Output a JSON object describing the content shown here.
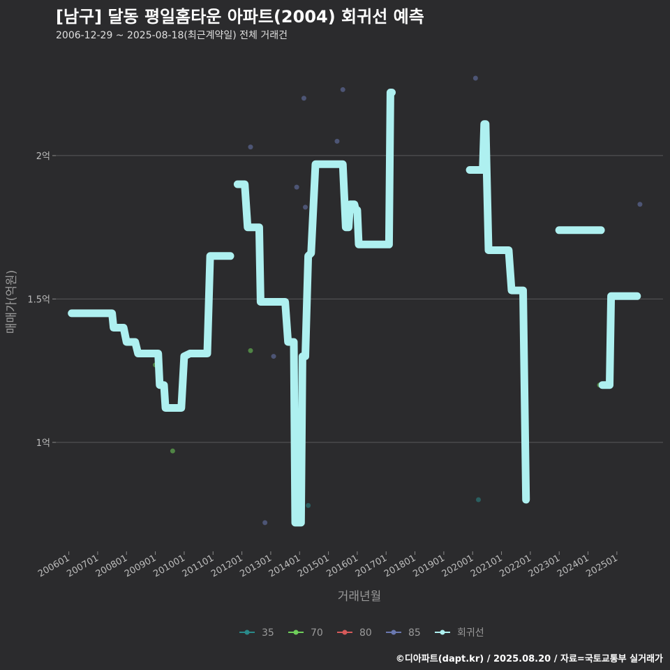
{
  "header": {
    "title": "[남구] 달동 평일홈타운 아파트(2004) 회귀선 예측",
    "subtitle": "2006-12-29 ~ 2025-08-18(최근계약일) 전체 거래건"
  },
  "caption": "©디아파트(dapt.kr) / 2025.08.20 / 자료=국토교통부 실거래가",
  "colors": {
    "background": "#2b2b2d",
    "grid": "#5a5a5c",
    "regression": "#aef0f0",
    "s35": "#2a8a8a",
    "s70": "#6fcf5a",
    "s80": "#d65a5a",
    "s85": "#6a78b0"
  },
  "chart_data": {
    "type": "scatter",
    "xlabel": "거래년월",
    "ylabel": "매매가(억원)",
    "x_unit": "years",
    "xlim": [
      2005.55,
      2026.6
    ],
    "ylim": [
      0.62,
      2.36
    ],
    "x_ticks": [
      {
        "label": "200601",
        "value": 2006.0
      },
      {
        "label": "200701",
        "value": 2007.0
      },
      {
        "label": "200801",
        "value": 2008.0
      },
      {
        "label": "200901",
        "value": 2009.0
      },
      {
        "label": "201001",
        "value": 2010.0
      },
      {
        "label": "201101",
        "value": 2011.0
      },
      {
        "label": "201201",
        "value": 2012.0
      },
      {
        "label": "201301",
        "value": 2013.0
      },
      {
        "label": "201401",
        "value": 2014.0
      },
      {
        "label": "201501",
        "value": 2015.0
      },
      {
        "label": "201601",
        "value": 2016.0
      },
      {
        "label": "201701",
        "value": 2017.0
      },
      {
        "label": "201801",
        "value": 2018.0
      },
      {
        "label": "201901",
        "value": 2019.0
      },
      {
        "label": "202001",
        "value": 2020.0
      },
      {
        "label": "202101",
        "value": 2021.0
      },
      {
        "label": "202201",
        "value": 2022.0
      },
      {
        "label": "202301",
        "value": 2023.0
      },
      {
        "label": "202401",
        "value": 2024.0
      },
      {
        "label": "202501",
        "value": 2025.0
      }
    ],
    "y_ticks": [
      {
        "label": "1억",
        "value": 1.0
      },
      {
        "label": "1.5억",
        "value": 1.5
      },
      {
        "label": "2억",
        "value": 2.0
      }
    ],
    "legend": [
      {
        "label": "35",
        "color_key": "s35"
      },
      {
        "label": "70",
        "color_key": "s70"
      },
      {
        "label": "80",
        "color_key": "s80"
      },
      {
        "label": "85",
        "color_key": "s85"
      },
      {
        "label": "회귀선",
        "color_key": "regression"
      }
    ],
    "series": [
      {
        "name": "35",
        "color_key": "s35",
        "points": [
          [
            2014.3,
            0.78
          ],
          [
            2020.2,
            0.8
          ]
        ]
      },
      {
        "name": "70",
        "color_key": "s70",
        "points": [
          [
            2009.0,
            1.27
          ],
          [
            2009.6,
            0.97
          ],
          [
            2012.3,
            1.32
          ],
          [
            2024.4,
            1.2
          ]
        ]
      },
      {
        "name": "80",
        "color_key": "s80",
        "points": []
      },
      {
        "name": "85",
        "color_key": "s85",
        "points": [
          [
            2011.9,
            1.9
          ],
          [
            2012.3,
            2.03
          ],
          [
            2012.8,
            0.72
          ],
          [
            2013.1,
            1.3
          ],
          [
            2013.9,
            1.89
          ],
          [
            2014.15,
            2.2
          ],
          [
            2014.2,
            1.82
          ],
          [
            2015.3,
            2.05
          ],
          [
            2015.5,
            2.23
          ],
          [
            2019.9,
            1.95
          ],
          [
            2020.1,
            2.27
          ],
          [
            2025.8,
            1.83
          ]
        ]
      }
    ],
    "regression": [
      [
        2006.1,
        1.45
      ],
      [
        2007.5,
        1.45
      ],
      [
        2007.55,
        1.4
      ],
      [
        2007.9,
        1.4
      ],
      [
        2008.0,
        1.35
      ],
      [
        2008.3,
        1.35
      ],
      [
        2008.4,
        1.31
      ],
      [
        2009.1,
        1.31
      ],
      [
        2009.15,
        1.2
      ],
      [
        2009.3,
        1.2
      ],
      [
        2009.35,
        1.12
      ],
      [
        2009.9,
        1.12
      ],
      [
        2010.0,
        1.3
      ],
      [
        2010.2,
        1.31
      ],
      [
        2010.8,
        1.31
      ],
      [
        2010.9,
        1.65
      ],
      [
        2011.6,
        1.65
      ],
      [
        null,
        null
      ],
      [
        2011.85,
        1.9
      ],
      [
        2012.1,
        1.9
      ],
      [
        2012.2,
        1.75
      ],
      [
        2012.6,
        1.75
      ],
      [
        2012.65,
        1.49
      ],
      [
        2013.5,
        1.49
      ],
      [
        2013.6,
        1.35
      ],
      [
        2013.8,
        1.35
      ],
      [
        2013.85,
        0.72
      ],
      [
        2014.05,
        0.72
      ],
      [
        2014.1,
        1.3
      ],
      [
        2014.2,
        1.3
      ],
      [
        2014.3,
        1.65
      ],
      [
        2014.4,
        1.66
      ],
      [
        2014.55,
        1.97
      ],
      [
        2015.5,
        1.97
      ],
      [
        2015.6,
        1.75
      ],
      [
        2015.7,
        1.75
      ],
      [
        2015.75,
        1.83
      ],
      [
        2015.9,
        1.83
      ],
      [
        2015.95,
        1.81
      ],
      [
        2016.0,
        1.81
      ],
      [
        2016.05,
        1.69
      ],
      [
        2017.1,
        1.69
      ],
      [
        2017.15,
        2.22
      ],
      [
        2017.2,
        2.22
      ],
      [
        null,
        null
      ],
      [
        2019.9,
        1.95
      ],
      [
        2020.35,
        1.95
      ],
      [
        2020.4,
        2.11
      ],
      [
        2020.45,
        2.11
      ],
      [
        2020.55,
        1.67
      ],
      [
        2021.25,
        1.67
      ],
      [
        2021.35,
        1.53
      ],
      [
        2021.75,
        1.53
      ],
      [
        2021.85,
        0.8
      ],
      [
        null,
        null
      ],
      [
        2023.0,
        1.74
      ],
      [
        2024.45,
        1.74
      ],
      [
        null,
        null
      ],
      [
        2024.5,
        1.2
      ],
      [
        2024.75,
        1.2
      ],
      [
        2024.8,
        1.51
      ],
      [
        2025.7,
        1.51
      ]
    ]
  }
}
